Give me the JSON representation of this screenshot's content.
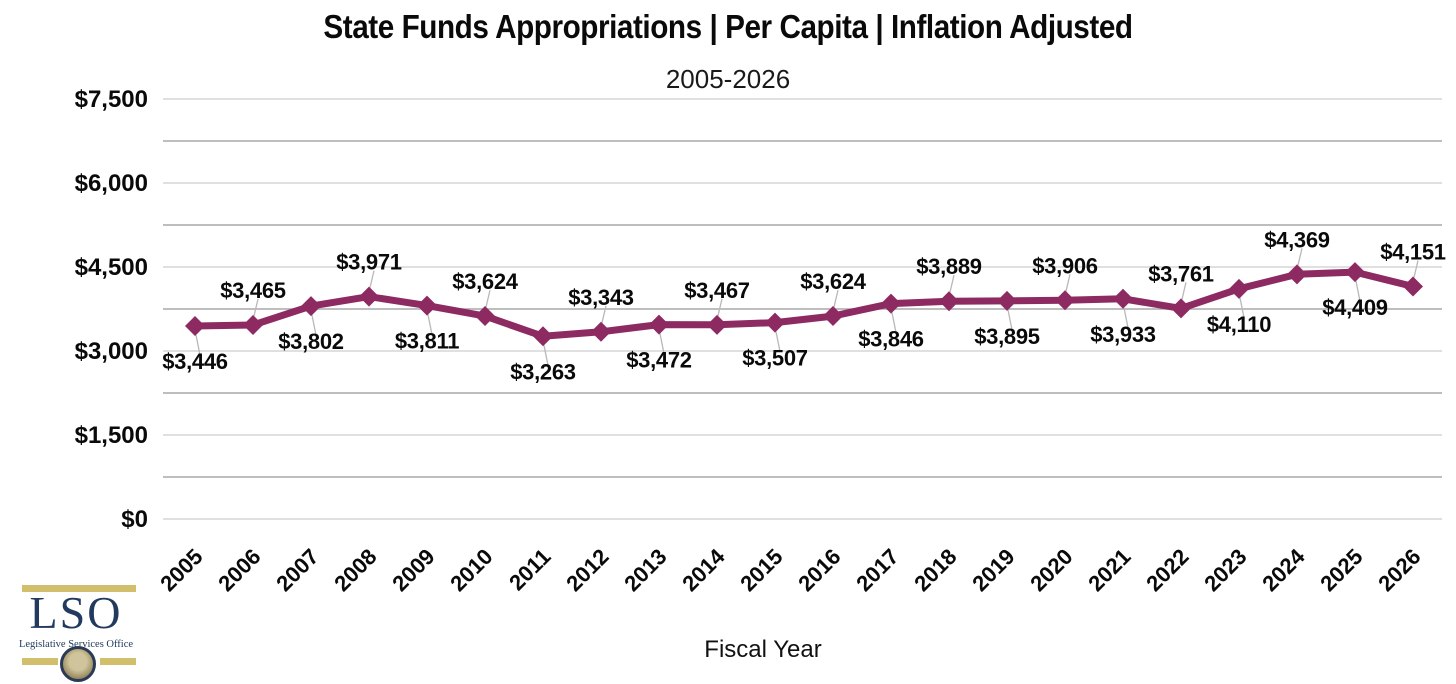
{
  "header": {
    "title": "State Funds Appropriations | Per Capita | Inflation Adjusted",
    "subtitle": "2005-2026"
  },
  "chart_data": {
    "type": "line",
    "title": "State Funds Appropriations | Per Capita | Inflation Adjusted",
    "subtitle": "2005-2026",
    "xlabel": "Fiscal Year",
    "ylabel": "",
    "ylim": [
      0,
      7500
    ],
    "y_tick_interval": 1500,
    "gridline_interval": 750,
    "y_tick_labels": [
      "$0",
      "$1,500",
      "$3,000",
      "$4,500",
      "$6,000",
      "$7,500"
    ],
    "grid": "on",
    "legend": "none",
    "marker": "diamond",
    "categories": [
      "2005",
      "2006",
      "2007",
      "2008",
      "2009",
      "2010",
      "2011",
      "2012",
      "2013",
      "2014",
      "2015",
      "2016",
      "2017",
      "2018",
      "2019",
      "2020",
      "2021",
      "2022",
      "2023",
      "2024",
      "2025",
      "2026"
    ],
    "values": [
      3446,
      3465,
      3802,
      3971,
      3811,
      3624,
      3263,
      3343,
      3472,
      3467,
      3507,
      3624,
      3846,
      3889,
      3895,
      3906,
      3933,
      3761,
      4110,
      4369,
      4409,
      4151
    ],
    "data_labels": [
      "$3,446",
      "$3,465",
      "$3,802",
      "$3,971",
      "$3,811",
      "$3,624",
      "$3,263",
      "$3,343",
      "$3,472",
      "$3,467",
      "$3,507",
      "$3,624",
      "$3,846",
      "$3,889",
      "$3,895",
      "$3,906",
      "$3,933",
      "$3,761",
      "$4,110",
      "$4,369",
      "$4,409",
      "$4,151"
    ],
    "data_label_positions": [
      "below",
      "above",
      "below",
      "above",
      "below",
      "above",
      "below",
      "above",
      "below",
      "above",
      "below",
      "above",
      "below",
      "above",
      "below",
      "above",
      "below",
      "above",
      "below",
      "above",
      "below",
      "above"
    ],
    "colors": {
      "line": "#8E2A62",
      "marker": "#8E2A62",
      "grid_major": "#d6d6d6",
      "grid_minor": "#a9a9a9",
      "leader_line": "#b8b8b8",
      "text": "#0a0a0a"
    }
  },
  "logo": {
    "acronym": "LSO",
    "name": "Legislative Services Office",
    "colors": {
      "navy": "#223a5e",
      "gold": "#d2bf6b"
    }
  }
}
